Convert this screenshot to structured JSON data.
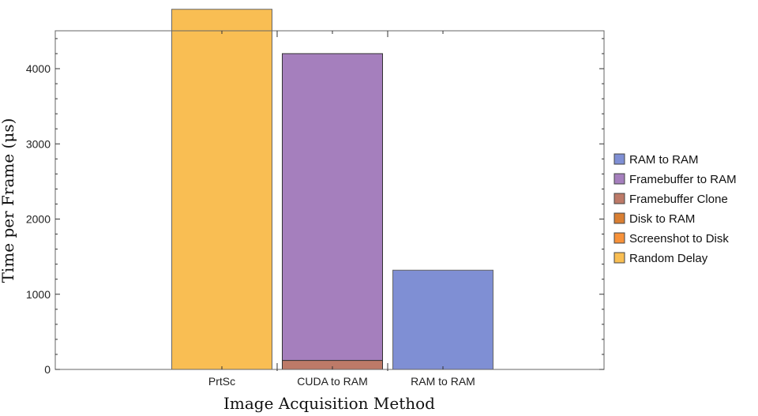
{
  "chart_data": {
    "type": "bar",
    "stacked": true,
    "categories": [
      "PrtSc",
      "CUDA to RAM",
      "RAM to RAM"
    ],
    "xlabel": "Image Acquisition Method",
    "ylabel": "Time per Frame (μs)",
    "ylim": [
      0,
      4500
    ],
    "yticks": [
      "0",
      "1000",
      "2000",
      "3000",
      "4000"
    ],
    "grid": false,
    "legend_position": "right",
    "series": [
      {
        "name": "RAM to RAM",
        "color": "#7f8fd4",
        "values": [
          0,
          0,
          1320
        ]
      },
      {
        "name": "Framebuffer to RAM",
        "color": "#a57fbd",
        "values": [
          0,
          4080,
          0
        ]
      },
      {
        "name": "Framebuffer Clone",
        "color": "#bd7a68",
        "values": [
          0,
          120,
          0
        ]
      },
      {
        "name": "Disk to RAM",
        "color": "#d97f33",
        "values": [
          0,
          0,
          0
        ]
      },
      {
        "name": "Screenshot to Disk",
        "color": "#f7923a",
        "values": [
          0,
          0,
          0
        ]
      },
      {
        "name": "Random Delay",
        "color": "#f9be53",
        "values": [
          4790,
          0,
          0
        ]
      }
    ]
  }
}
